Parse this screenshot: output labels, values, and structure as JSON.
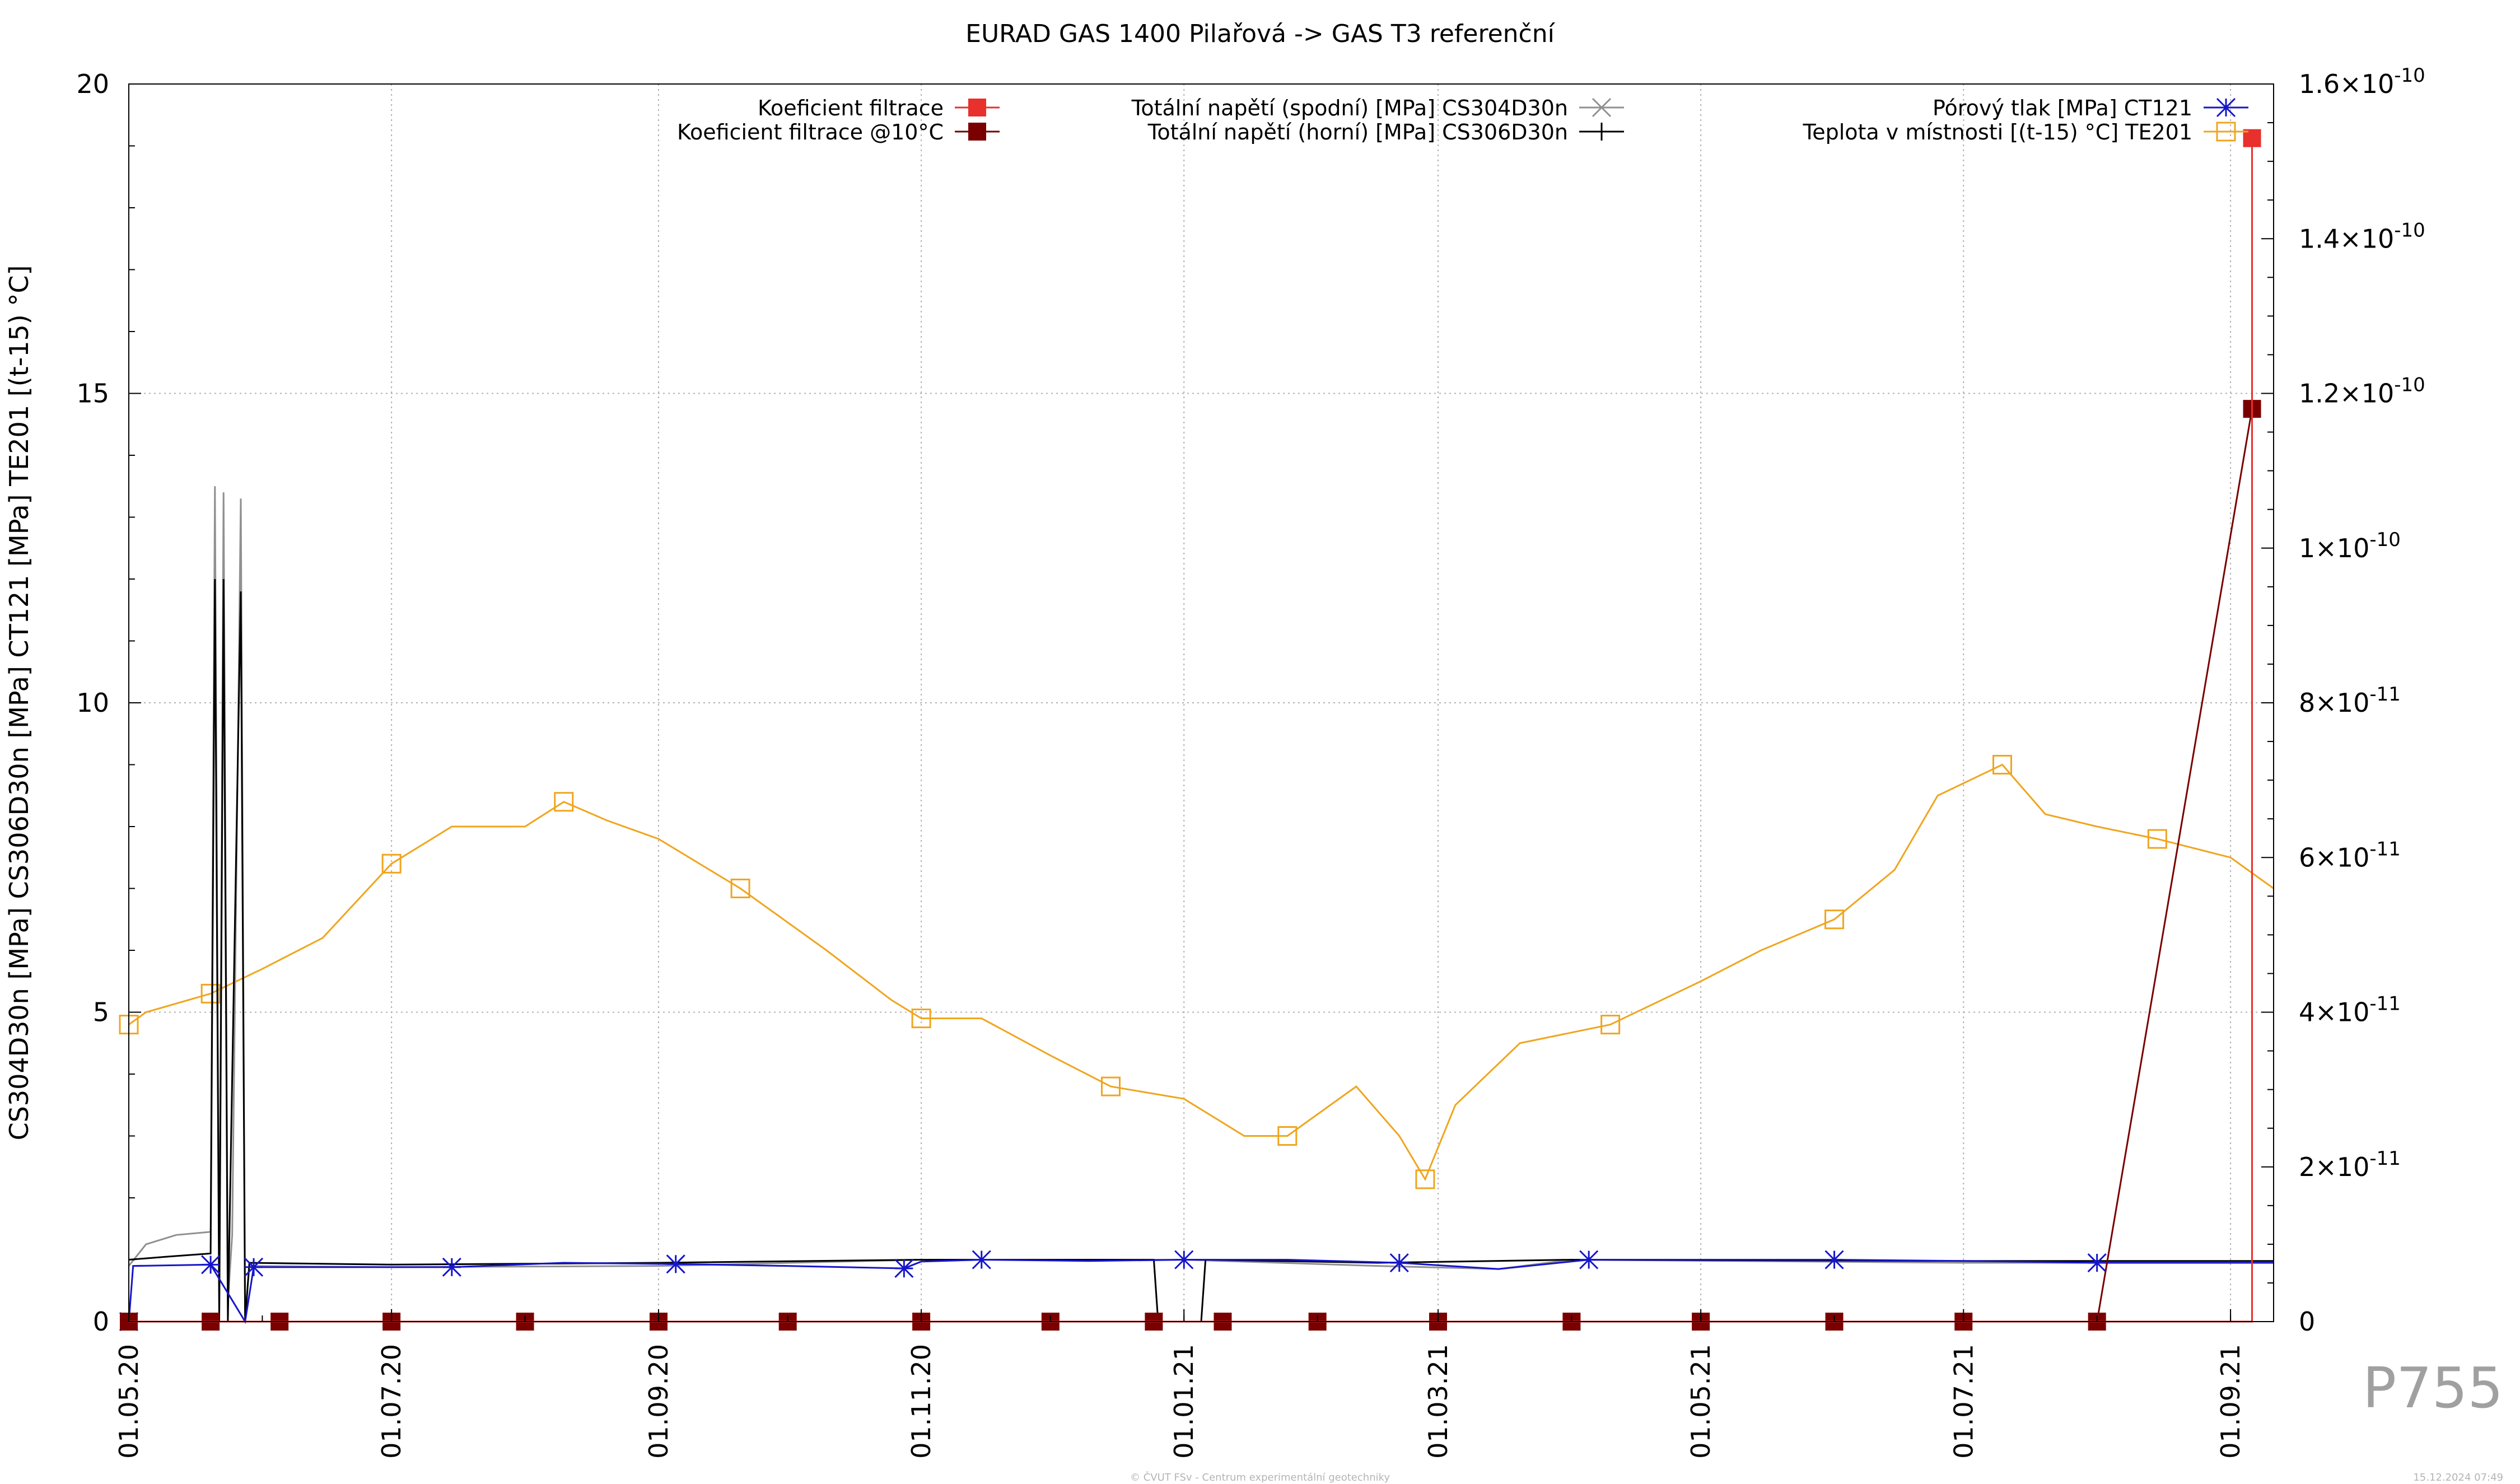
{
  "chart_data": {
    "type": "line",
    "title": "EURAD GAS 1400 Pilařová -> GAS T3 referenční",
    "ylabel": "CS304D30n [MPa] CS306D30n [MPa] CT121 [MPa] TE201 [(t-15) °C]",
    "y2label": "",
    "xlabel": "",
    "x_ticks": [
      "01.05.20",
      "01.07.20",
      "01.09.20",
      "01.11.20",
      "01.01.21",
      "01.03.21",
      "01.05.21",
      "01.07.21",
      "01.09.21"
    ],
    "x_range": [
      "2020-05-01",
      "2021-09-11"
    ],
    "y_ticks": [
      "0",
      "5",
      "10",
      "15",
      "20"
    ],
    "ylim": [
      0,
      20
    ],
    "y2_ticks": [
      {
        "mant": "0",
        "exp": ""
      },
      {
        "mant": "2×10",
        "exp": "-11"
      },
      {
        "mant": "4×10",
        "exp": "-11"
      },
      {
        "mant": "6×10",
        "exp": "-11"
      },
      {
        "mant": "8×10",
        "exp": "-11"
      },
      {
        "mant": "1×10",
        "exp": "-10"
      },
      {
        "mant": "1.2×10",
        "exp": "-10"
      },
      {
        "mant": "1.4×10",
        "exp": "-10"
      },
      {
        "mant": "1.6×10",
        "exp": "-10"
      }
    ],
    "y2lim": [
      0,
      1.6e-10
    ],
    "grid": true,
    "legend_position": "top",
    "series": [
      {
        "name": "Koeficient filtrace",
        "axis": "y2",
        "color": "#e8302d",
        "marker": "square-filled",
        "points": [
          [
            "2020-05-01",
            0
          ],
          [
            "2021-09-06",
            0
          ],
          [
            "2021-09-06",
            1.53e-10
          ]
        ]
      },
      {
        "name": "Koeficient filtrace @10°C",
        "axis": "y2",
        "color": "#7a0000",
        "marker": "square-filled",
        "points": [
          [
            "2020-05-01",
            0
          ],
          [
            "2020-05-20",
            0
          ],
          [
            "2020-06-05",
            0
          ],
          [
            "2020-07-01",
            0
          ],
          [
            "2020-08-01",
            0
          ],
          [
            "2020-09-01",
            0
          ],
          [
            "2020-10-01",
            0
          ],
          [
            "2020-11-01",
            0
          ],
          [
            "2020-12-01",
            0
          ],
          [
            "2020-12-25",
            0
          ],
          [
            "2021-01-10",
            0
          ],
          [
            "2021-02-01",
            0
          ],
          [
            "2021-03-01",
            0
          ],
          [
            "2021-04-01",
            0
          ],
          [
            "2021-05-01",
            0
          ],
          [
            "2021-06-01",
            0
          ],
          [
            "2021-07-01",
            0
          ],
          [
            "2021-08-01",
            0
          ],
          [
            "2021-09-06",
            1.18e-10
          ]
        ]
      },
      {
        "name": "Totální napětí (spodní) [MPa] CS304D30n",
        "axis": "y",
        "color": "#909090",
        "marker": "x",
        "points": [
          [
            "2020-05-01",
            0.9
          ],
          [
            "2020-05-05",
            1.25
          ],
          [
            "2020-05-12",
            1.4
          ],
          [
            "2020-05-20",
            1.45
          ],
          [
            "2020-05-21",
            13.5
          ],
          [
            "2020-05-22",
            0.2
          ],
          [
            "2020-05-23",
            13.4
          ],
          [
            "2020-05-24",
            0.3
          ],
          [
            "2020-05-25",
            1.4
          ],
          [
            "2020-05-27",
            13.3
          ],
          [
            "2020-05-28",
            0.1
          ],
          [
            "2020-05-29",
            0.9
          ],
          [
            "2020-07-01",
            0.88
          ],
          [
            "2020-09-01",
            0.9
          ],
          [
            "2020-11-01",
            1.0
          ],
          [
            "2021-01-01",
            1.0
          ],
          [
            "2021-02-15",
            0.9
          ],
          [
            "2021-03-15",
            0.85
          ],
          [
            "2021-04-01",
            1.0
          ],
          [
            "2021-07-01",
            0.95
          ],
          [
            "2021-09-11",
            0.95
          ]
        ]
      },
      {
        "name": "Totální napětí (horní) [MPa] CS306D30n",
        "axis": "y",
        "color": "#000000",
        "marker": "plus",
        "points": [
          [
            "2020-05-01",
            1.0
          ],
          [
            "2020-05-10",
            1.05
          ],
          [
            "2020-05-20",
            1.1
          ],
          [
            "2020-05-21",
            12.0
          ],
          [
            "2020-05-22",
            0.0
          ],
          [
            "2020-05-23",
            12.0
          ],
          [
            "2020-05-24",
            0.0
          ],
          [
            "2020-05-27",
            11.8
          ],
          [
            "2020-05-28",
            0.0
          ],
          [
            "2020-05-29",
            0.95
          ],
          [
            "2020-07-01",
            0.92
          ],
          [
            "2020-09-01",
            0.95
          ],
          [
            "2020-11-01",
            1.0
          ],
          [
            "2020-12-25",
            1.0
          ],
          [
            "2020-12-26",
            0.0
          ],
          [
            "2021-01-05",
            0.0
          ],
          [
            "2021-01-06",
            1.0
          ],
          [
            "2021-02-15",
            0.95
          ],
          [
            "2021-04-01",
            1.0
          ],
          [
            "2021-07-01",
            0.98
          ],
          [
            "2021-09-11",
            0.98
          ]
        ]
      },
      {
        "name": "Pórový tlak [MPa] CT121",
        "axis": "y",
        "color": "#1515cc",
        "marker": "asterisk",
        "points": [
          [
            "2020-05-01",
            0.0
          ],
          [
            "2020-05-02",
            0.9
          ],
          [
            "2020-05-20",
            0.92
          ],
          [
            "2020-05-28",
            0.0
          ],
          [
            "2020-05-30",
            0.88
          ],
          [
            "2020-06-20",
            0.88
          ],
          [
            "2020-07-15",
            0.88
          ],
          [
            "2020-08-10",
            0.95
          ],
          [
            "2020-09-05",
            0.93
          ],
          [
            "2020-10-01",
            0.9
          ],
          [
            "2020-10-28",
            0.86
          ],
          [
            "2020-11-01",
            0.97
          ],
          [
            "2020-11-15",
            1.0
          ],
          [
            "2020-12-10",
            0.98
          ],
          [
            "2021-01-01",
            1.0
          ],
          [
            "2021-01-25",
            1.0
          ],
          [
            "2021-02-20",
            0.95
          ],
          [
            "2021-03-15",
            0.85
          ],
          [
            "2021-04-05",
            1.0
          ],
          [
            "2021-05-01",
            1.0
          ],
          [
            "2021-06-01",
            1.0
          ],
          [
            "2021-07-01",
            0.98
          ],
          [
            "2021-08-01",
            0.95
          ],
          [
            "2021-09-11",
            0.95
          ]
        ]
      },
      {
        "name": "Teplota v místnosti [(t-15) °C] TE201",
        "axis": "y",
        "color": "#f0a51e",
        "marker": "square-open",
        "points": [
          [
            "2020-05-01",
            4.8
          ],
          [
            "2020-05-05",
            5.0
          ],
          [
            "2020-05-10",
            5.1
          ],
          [
            "2020-05-20",
            5.3
          ],
          [
            "2020-06-01",
            5.7
          ],
          [
            "2020-06-15",
            6.2
          ],
          [
            "2020-07-01",
            7.4
          ],
          [
            "2020-07-15",
            8.0
          ],
          [
            "2020-08-01",
            8.0
          ],
          [
            "2020-08-10",
            8.4
          ],
          [
            "2020-08-20",
            8.1
          ],
          [
            "2020-09-01",
            7.8
          ],
          [
            "2020-09-20",
            7.0
          ],
          [
            "2020-10-10",
            6.0
          ],
          [
            "2020-10-25",
            5.2
          ],
          [
            "2020-11-01",
            4.9
          ],
          [
            "2020-11-15",
            4.9
          ],
          [
            "2020-12-01",
            4.3
          ],
          [
            "2020-12-15",
            3.8
          ],
          [
            "2021-01-01",
            3.6
          ],
          [
            "2021-01-15",
            3.0
          ],
          [
            "2021-01-25",
            3.0
          ],
          [
            "2021-02-10",
            3.8
          ],
          [
            "2021-02-20",
            3.0
          ],
          [
            "2021-02-26",
            2.3
          ],
          [
            "2021-03-05",
            3.5
          ],
          [
            "2021-03-20",
            4.5
          ],
          [
            "2021-04-10",
            4.8
          ],
          [
            "2021-05-01",
            5.5
          ],
          [
            "2021-05-15",
            6.0
          ],
          [
            "2021-06-01",
            6.5
          ],
          [
            "2021-06-15",
            7.3
          ],
          [
            "2021-06-25",
            8.5
          ],
          [
            "2021-07-10",
            9.0
          ],
          [
            "2021-07-20",
            8.2
          ],
          [
            "2021-08-01",
            8.0
          ],
          [
            "2021-08-15",
            7.8
          ],
          [
            "2021-09-01",
            7.5
          ],
          [
            "2021-09-11",
            7.0
          ]
        ]
      }
    ]
  },
  "footer": {
    "page_id": "P755",
    "credit": "© ČVUT FSv - Centrum experimentální geotechniky",
    "date": "15.12.2024 07:49"
  }
}
